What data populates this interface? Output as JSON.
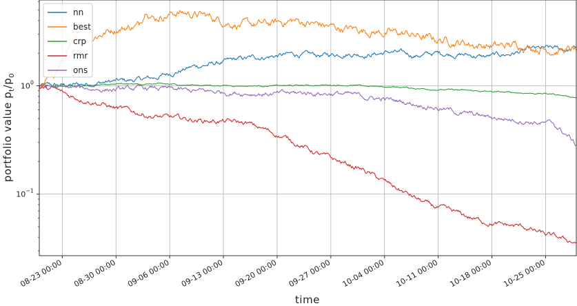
{
  "chart_data": {
    "type": "line",
    "title": "",
    "xlabel": "time",
    "ylabel": "portfolio value p",
    "ylabel_sub_t": "t",
    "ylabel_slash": "/p",
    "ylabel_sub_0": "0",
    "y_scale": "log",
    "ylim": [
      0.027,
      6.2
    ],
    "xlim": [
      "2018-08-20",
      "2018-10-29"
    ],
    "grid": true,
    "legend_position": "top-left",
    "x_ticks": [
      {
        "date": "2018-08-23",
        "label": "08-23 00:00"
      },
      {
        "date": "2018-08-30",
        "label": "08-30 00:00"
      },
      {
        "date": "2018-09-06",
        "label": "09-06 00:00"
      },
      {
        "date": "2018-09-13",
        "label": "09-13 00:00"
      },
      {
        "date": "2018-09-20",
        "label": "09-20 00:00"
      },
      {
        "date": "2018-09-27",
        "label": "09-27 00:00"
      },
      {
        "date": "2018-10-04",
        "label": "10-04 00:00"
      },
      {
        "date": "2018-10-11",
        "label": "10-11 00:00"
      },
      {
        "date": "2018-10-18",
        "label": "10-18 00:00"
      },
      {
        "date": "2018-10-25",
        "label": "10-25 00:00"
      }
    ],
    "y_ticks": [
      {
        "value": 1,
        "base": "10",
        "exp": "0"
      },
      {
        "value": 0.1,
        "base": "10",
        "exp": "−1"
      }
    ],
    "series": [
      {
        "name": "nn",
        "color": "#1f77b4",
        "points": [
          [
            "2018-08-20",
            1.0
          ],
          [
            "2018-08-22",
            1.0
          ],
          [
            "2018-08-25",
            1.02
          ],
          [
            "2018-08-28",
            1.08
          ],
          [
            "2018-09-01",
            1.12
          ],
          [
            "2018-09-04",
            1.18
          ],
          [
            "2018-09-06",
            1.3
          ],
          [
            "2018-09-09",
            1.5
          ],
          [
            "2018-09-12",
            1.6
          ],
          [
            "2018-09-15",
            1.75
          ],
          [
            "2018-09-18",
            1.85
          ],
          [
            "2018-09-22",
            1.95
          ],
          [
            "2018-09-26",
            1.9
          ],
          [
            "2018-09-29",
            2.0
          ],
          [
            "2018-10-02",
            1.95
          ],
          [
            "2018-10-05",
            2.05
          ],
          [
            "2018-10-08",
            1.9
          ],
          [
            "2018-10-11",
            2.0
          ],
          [
            "2018-10-14",
            1.95
          ],
          [
            "2018-10-17",
            1.85
          ],
          [
            "2018-10-20",
            1.95
          ],
          [
            "2018-10-23",
            2.15
          ],
          [
            "2018-10-26",
            2.2
          ],
          [
            "2018-10-28",
            2.15
          ],
          [
            "2018-10-29",
            2.25
          ]
        ]
      },
      {
        "name": "best",
        "color": "#ff7f0e",
        "points": [
          [
            "2018-08-20",
            0.95
          ],
          [
            "2018-08-22",
            1.3
          ],
          [
            "2018-08-24",
            2.2
          ],
          [
            "2018-08-27",
            2.9
          ],
          [
            "2018-08-30",
            3.4
          ],
          [
            "2018-09-02",
            3.6
          ],
          [
            "2018-09-03",
            5.4
          ],
          [
            "2018-09-04",
            4.3
          ],
          [
            "2018-09-07",
            4.8
          ],
          [
            "2018-09-10",
            4.5
          ],
          [
            "2018-09-13",
            4.0
          ],
          [
            "2018-09-16",
            3.6
          ],
          [
            "2018-09-19",
            3.7
          ],
          [
            "2018-09-22",
            4.0
          ],
          [
            "2018-09-25",
            3.7
          ],
          [
            "2018-09-28",
            3.4
          ],
          [
            "2018-10-01",
            3.3
          ],
          [
            "2018-10-04",
            3.1
          ],
          [
            "2018-10-07",
            3.0
          ],
          [
            "2018-10-10",
            2.7
          ],
          [
            "2018-10-13",
            2.6
          ],
          [
            "2018-10-16",
            2.4
          ],
          [
            "2018-10-19",
            2.3
          ],
          [
            "2018-10-22",
            2.4
          ],
          [
            "2018-10-25",
            2.2
          ],
          [
            "2018-10-29",
            2.1
          ]
        ]
      },
      {
        "name": "crp",
        "color": "#2ca02c",
        "points": [
          [
            "2018-08-20",
            1.0
          ],
          [
            "2018-08-25",
            1.0
          ],
          [
            "2018-08-30",
            1.03
          ],
          [
            "2018-09-04",
            1.04
          ],
          [
            "2018-09-08",
            1.02
          ],
          [
            "2018-09-12",
            1.01
          ],
          [
            "2018-09-16",
            1.0
          ],
          [
            "2018-09-20",
            1.0
          ],
          [
            "2018-09-24",
            1.01
          ],
          [
            "2018-09-28",
            1.02
          ],
          [
            "2018-10-02",
            0.99
          ],
          [
            "2018-10-06",
            0.97
          ],
          [
            "2018-10-10",
            0.93
          ],
          [
            "2018-10-14",
            0.91
          ],
          [
            "2018-10-18",
            0.88
          ],
          [
            "2018-10-22",
            0.86
          ],
          [
            "2018-10-26",
            0.84
          ],
          [
            "2018-10-29",
            0.78
          ]
        ]
      },
      {
        "name": "rmr",
        "color": "#d62728",
        "points": [
          [
            "2018-08-20",
            0.95
          ],
          [
            "2018-08-22",
            0.92
          ],
          [
            "2018-08-24",
            0.8
          ],
          [
            "2018-08-27",
            0.72
          ],
          [
            "2018-08-30",
            0.62
          ],
          [
            "2018-09-01",
            0.58
          ],
          [
            "2018-09-04",
            0.52
          ],
          [
            "2018-09-07",
            0.5
          ],
          [
            "2018-09-10",
            0.48
          ],
          [
            "2018-09-13",
            0.47
          ],
          [
            "2018-09-16",
            0.45
          ],
          [
            "2018-09-19",
            0.38
          ],
          [
            "2018-09-22",
            0.31
          ],
          [
            "2018-09-25",
            0.24
          ],
          [
            "2018-09-28",
            0.2
          ],
          [
            "2018-10-01",
            0.17
          ],
          [
            "2018-10-04",
            0.13
          ],
          [
            "2018-10-07",
            0.1
          ],
          [
            "2018-10-10",
            0.078
          ],
          [
            "2018-10-13",
            0.068
          ],
          [
            "2018-10-16",
            0.058
          ],
          [
            "2018-10-19",
            0.052
          ],
          [
            "2018-10-22",
            0.05
          ],
          [
            "2018-10-25",
            0.042
          ],
          [
            "2018-10-28",
            0.037
          ],
          [
            "2018-10-29",
            0.036
          ]
        ]
      },
      {
        "name": "ons",
        "color": "#9467bd",
        "points": [
          [
            "2018-08-20",
            0.98
          ],
          [
            "2018-08-25",
            0.95
          ],
          [
            "2018-08-30",
            0.92
          ],
          [
            "2018-09-04",
            0.95
          ],
          [
            "2018-09-08",
            0.9
          ],
          [
            "2018-09-12",
            0.88
          ],
          [
            "2018-09-16",
            0.86
          ],
          [
            "2018-09-20",
            0.84
          ],
          [
            "2018-09-24",
            0.86
          ],
          [
            "2018-09-28",
            0.85
          ],
          [
            "2018-10-02",
            0.78
          ],
          [
            "2018-10-06",
            0.72
          ],
          [
            "2018-10-10",
            0.65
          ],
          [
            "2018-10-14",
            0.56
          ],
          [
            "2018-10-18",
            0.51
          ],
          [
            "2018-10-22",
            0.48
          ],
          [
            "2018-10-26",
            0.44
          ],
          [
            "2018-10-28",
            0.34
          ],
          [
            "2018-10-29",
            0.28
          ]
        ]
      }
    ]
  }
}
